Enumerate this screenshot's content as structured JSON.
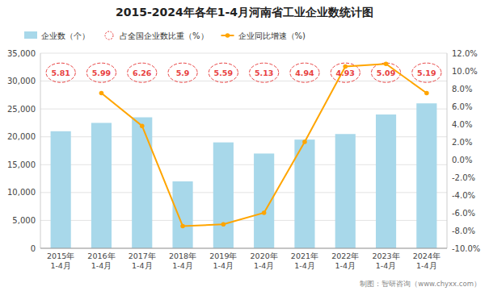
{
  "chart_data": {
    "type": "bar",
    "title": "2015-2024年各年1-4月河南省工业企业数统计图",
    "categories": [
      "2015年\n1-4月",
      "2016年\n1-4月",
      "2017年\n1-4月",
      "2018年\n1-4月",
      "2019年\n1-4月",
      "2020年\n1-4月",
      "2021年\n1-4月",
      "2022年\n1-4月",
      "2023年\n1-4月",
      "2024年\n1-4月"
    ],
    "series": [
      {
        "name": "企业数（个）",
        "type": "bar",
        "color": "#a8d8ea",
        "values": [
          21000,
          22500,
          23500,
          12000,
          19000,
          17000,
          19500,
          20500,
          24000,
          26000
        ]
      },
      {
        "name": "占全国企业数比重（%）",
        "type": "label",
        "color": "#e84040",
        "marker": "circle",
        "line_style": "dashed",
        "values": [
          5.81,
          5.99,
          6.26,
          5.9,
          5.59,
          5.13,
          4.94,
          4.93,
          5.09,
          5.19
        ]
      },
      {
        "name": "企业同比增速（%)",
        "type": "line",
        "axis": "y2",
        "color": "#FFA500",
        "marker": "circle",
        "line_style": "solid",
        "values": [
          null,
          7.5,
          3.8,
          -7.5,
          -7.3,
          -6.0,
          2.0,
          10.5,
          10.8,
          7.5
        ]
      }
    ],
    "ylim": [
      0,
      35000
    ],
    "yticks": [
      0,
      {
        "value": 5000,
        "label": "5,000"
      },
      {
        "value": 10000,
        "label": "10,000"
      },
      {
        "value": 15000,
        "label": "15,000"
      },
      {
        "value": 20000,
        "label": "20,000"
      },
      {
        "value": 25000,
        "label": "25,000"
      },
      {
        "value": 30000,
        "label": "30,000"
      },
      {
        "value": 35000,
        "label": "35,000"
      }
    ],
    "y2lim": [
      -10.0,
      12.0
    ],
    "y2ticks": [
      {
        "value": -10,
        "label": "-10.0%"
      },
      {
        "value": -8,
        "label": "-8.0%"
      },
      {
        "value": -6,
        "label": "-6.0%"
      },
      {
        "value": -4,
        "label": "-4.0%"
      },
      {
        "value": -2,
        "label": "-2.0%"
      },
      {
        "value": 0,
        "label": "0.0%"
      },
      {
        "value": 2,
        "label": "2.0%"
      },
      {
        "value": 4,
        "label": "4.0%"
      },
      {
        "value": 6,
        "label": "6.0%"
      },
      {
        "value": 8,
        "label": "8.0%"
      },
      {
        "value": 10,
        "label": "10.0%"
      },
      {
        "value": 12,
        "label": "12.0%"
      }
    ],
    "grid": true,
    "legend": "upper left",
    "data_labels": true,
    "annotations": [
      "制图：智研咨询（www.chyxx.com）"
    ]
  }
}
